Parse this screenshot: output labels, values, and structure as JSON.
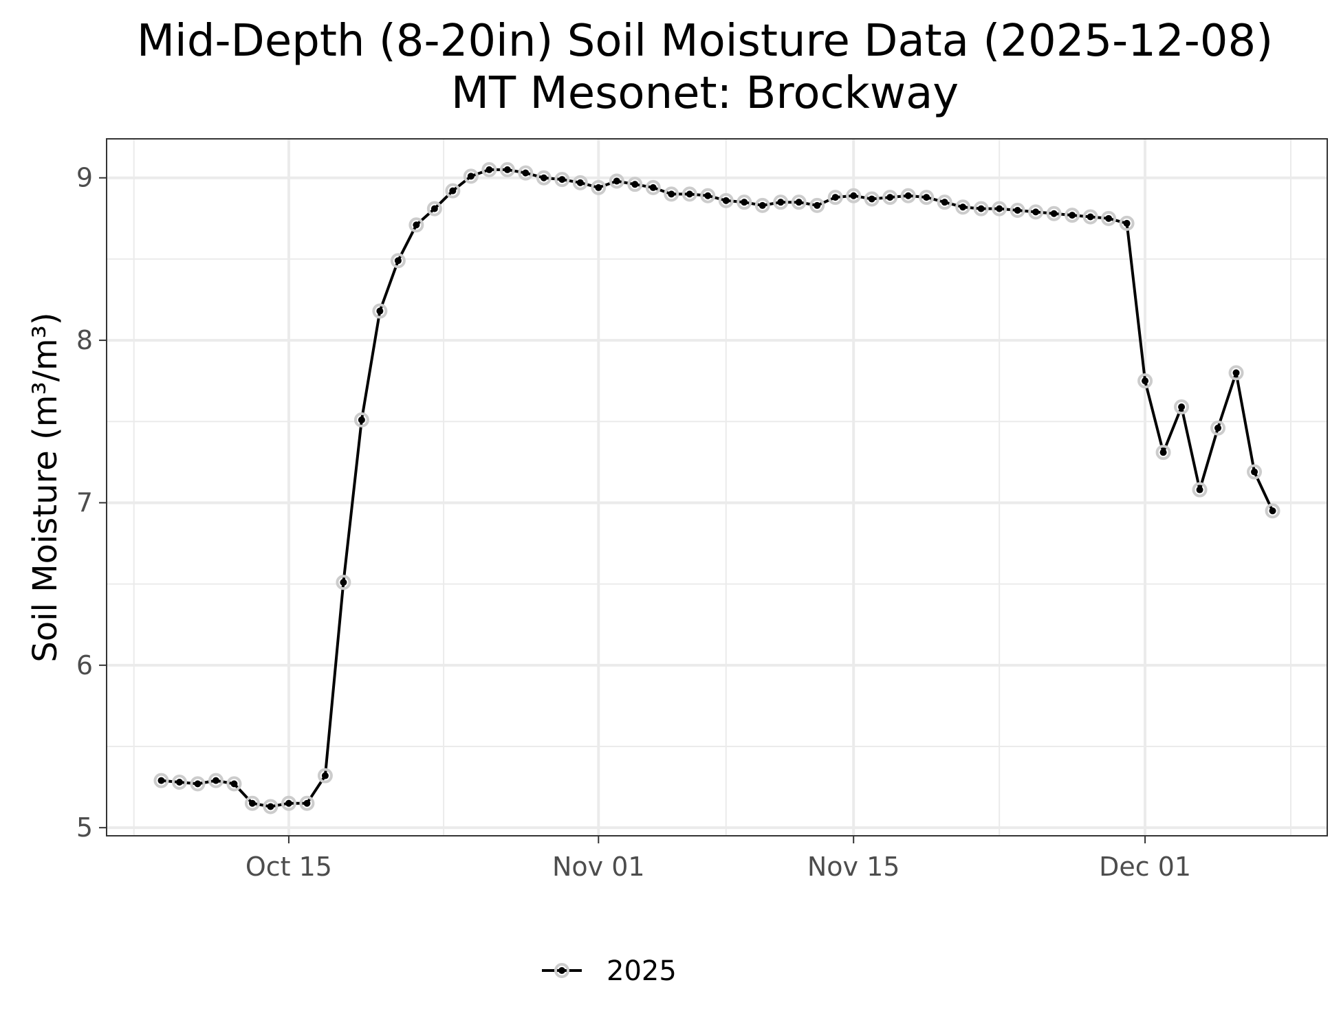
{
  "chart_data": {
    "type": "line",
    "title": "Mid-Depth (8-20in) Soil Moisture Data (2025-12-08)",
    "subtitle": "MT Mesonet: Brockway",
    "xlabel": "",
    "ylabel": "Soil Moisture (m³/m³)",
    "x_ticks": [
      {
        "date": "2025-10-15",
        "label": "Oct 15"
      },
      {
        "date": "2025-11-01",
        "label": "Nov 01"
      },
      {
        "date": "2025-11-15",
        "label": "Nov 15"
      },
      {
        "date": "2025-12-01",
        "label": "Dec 01"
      }
    ],
    "y_ticks": [
      5,
      6,
      7,
      8,
      9
    ],
    "xlim": [
      "2025-10-05",
      "2025-12-11"
    ],
    "ylim": [
      4.95,
      9.24
    ],
    "grid": true,
    "legend_position": "bottom",
    "series": [
      {
        "name": "2025",
        "color": "#000000",
        "halo_color": "#cccccc",
        "x": [
          "2025-10-08",
          "2025-10-09",
          "2025-10-10",
          "2025-10-11",
          "2025-10-12",
          "2025-10-13",
          "2025-10-14",
          "2025-10-15",
          "2025-10-16",
          "2025-10-17",
          "2025-10-18",
          "2025-10-19",
          "2025-10-20",
          "2025-10-21",
          "2025-10-22",
          "2025-10-23",
          "2025-10-24",
          "2025-10-25",
          "2025-10-26",
          "2025-10-27",
          "2025-10-28",
          "2025-10-29",
          "2025-10-30",
          "2025-10-31",
          "2025-11-01",
          "2025-11-02",
          "2025-11-03",
          "2025-11-04",
          "2025-11-05",
          "2025-11-06",
          "2025-11-07",
          "2025-11-08",
          "2025-11-09",
          "2025-11-10",
          "2025-11-11",
          "2025-11-12",
          "2025-11-13",
          "2025-11-14",
          "2025-11-15",
          "2025-11-16",
          "2025-11-17",
          "2025-11-18",
          "2025-11-19",
          "2025-11-20",
          "2025-11-21",
          "2025-11-22",
          "2025-11-23",
          "2025-11-24",
          "2025-11-25",
          "2025-11-26",
          "2025-11-27",
          "2025-11-28",
          "2025-11-29",
          "2025-11-30",
          "2025-12-01",
          "2025-12-02",
          "2025-12-03",
          "2025-12-04",
          "2025-12-05",
          "2025-12-06",
          "2025-12-07",
          "2025-12-08"
        ],
        "y": [
          5.29,
          5.28,
          5.27,
          5.29,
          5.27,
          5.15,
          5.13,
          5.15,
          5.15,
          5.32,
          6.51,
          7.51,
          8.18,
          8.49,
          8.71,
          8.81,
          8.92,
          9.01,
          9.05,
          9.05,
          9.03,
          9.0,
          8.99,
          8.97,
          8.94,
          8.98,
          8.96,
          8.94,
          8.9,
          8.9,
          8.89,
          8.86,
          8.85,
          8.83,
          8.85,
          8.85,
          8.83,
          8.88,
          8.89,
          8.87,
          8.88,
          8.89,
          8.88,
          8.85,
          8.82,
          8.81,
          8.81,
          8.8,
          8.79,
          8.78,
          8.77,
          8.76,
          8.75,
          8.72,
          7.75,
          7.31,
          7.59,
          7.08,
          7.46,
          7.8,
          7.19,
          6.95
        ]
      }
    ]
  }
}
